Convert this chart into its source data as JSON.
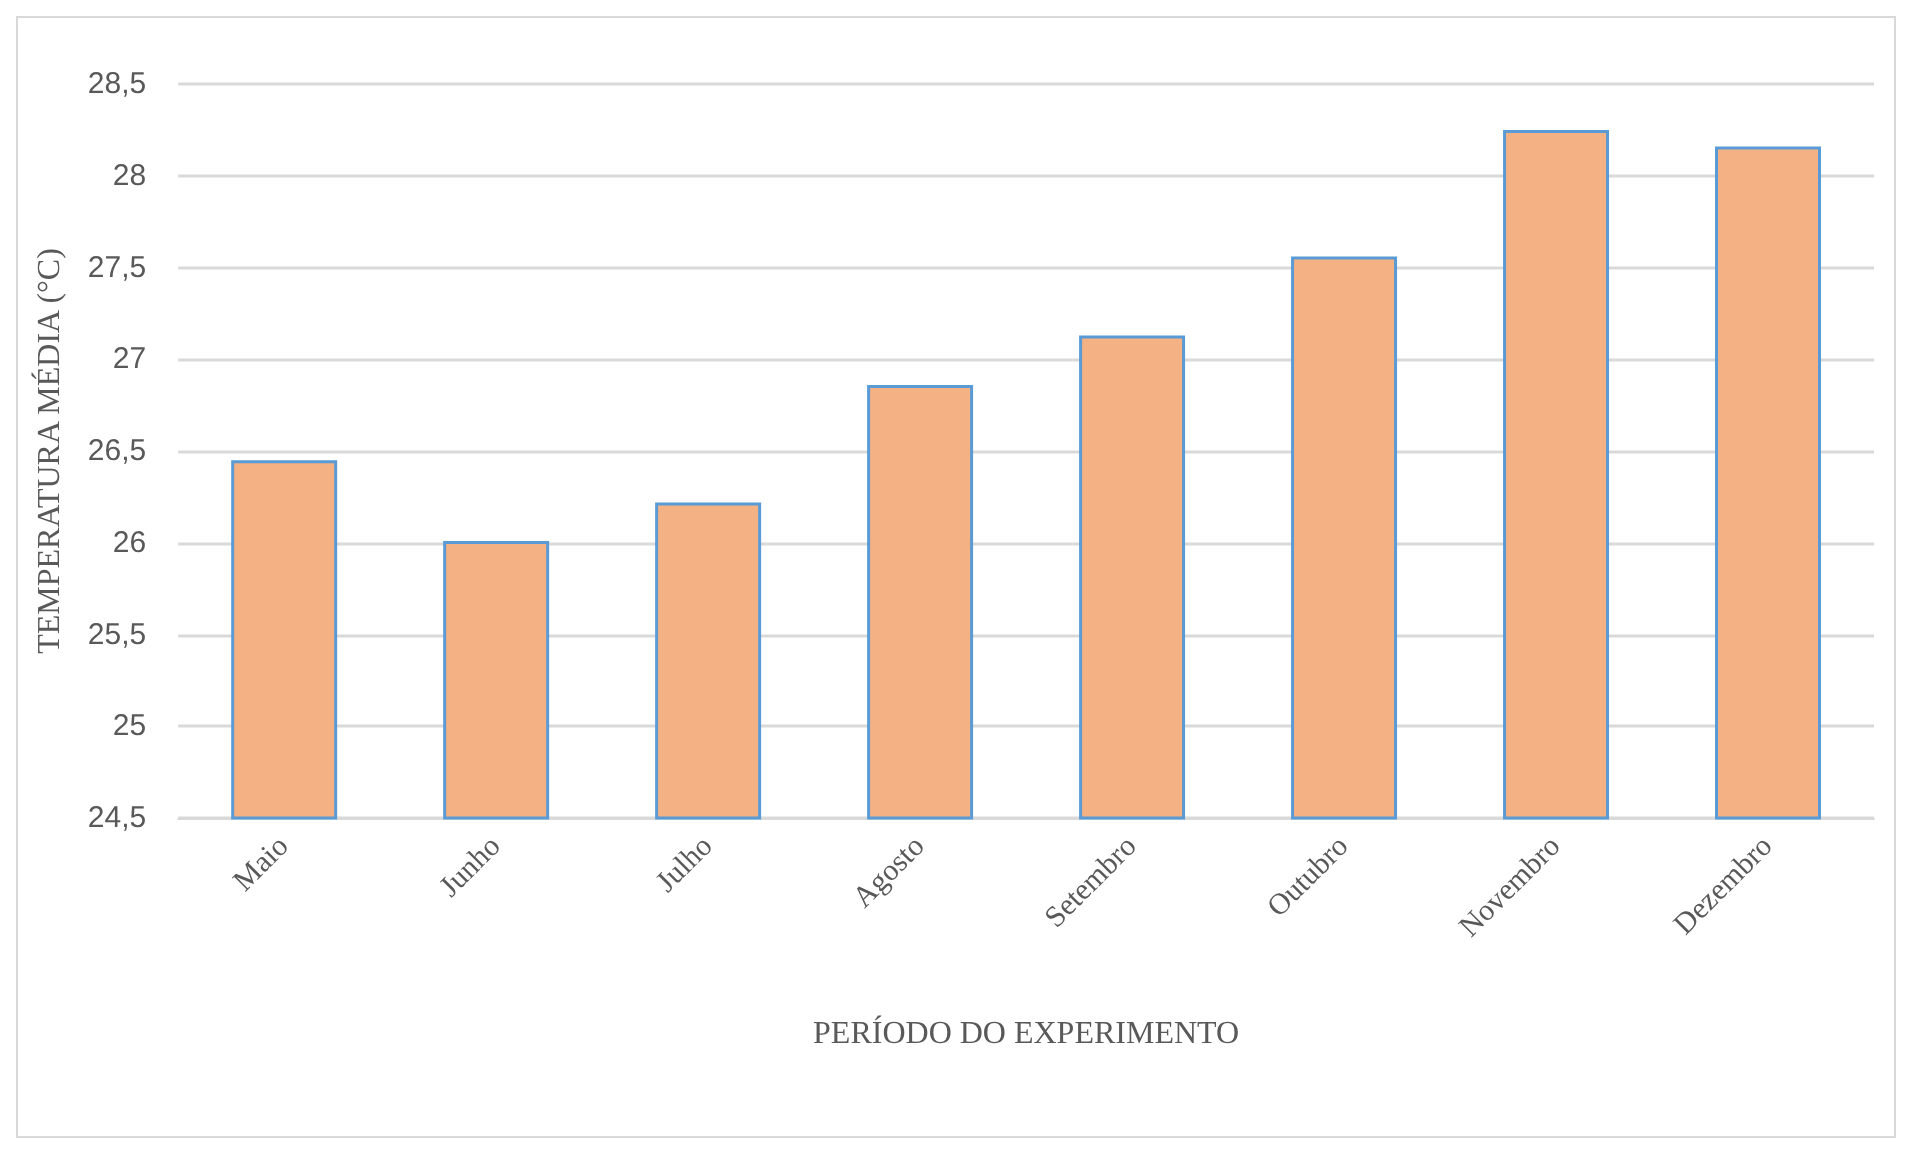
{
  "chart_data": {
    "type": "bar",
    "xlabel": "PERÍODO DO EXPERIMENTO",
    "ylabel": "TEMPERATURA MÉDIA (°C)",
    "categories": [
      "Maio",
      "Junho",
      "Julho",
      "Agosto",
      "Setembro",
      "Outubro",
      "Novembro",
      "Dezembro"
    ],
    "values": [
      26.45,
      26.01,
      26.22,
      26.86,
      27.13,
      27.56,
      28.25,
      28.16
    ],
    "color": "#f4b183",
    "ylim": [
      24.5,
      28.5
    ],
    "yticks": [
      {
        "value": 24.5,
        "label": "24,5"
      },
      25,
      {
        "value": 25.5,
        "label": "25,5"
      },
      26,
      {
        "value": 26.5,
        "label": "26,5"
      },
      27,
      {
        "value": 27.5,
        "label": "27,5"
      },
      28,
      {
        "value": 28.5,
        "label": "28,5"
      }
    ],
    "grid": "y"
  }
}
